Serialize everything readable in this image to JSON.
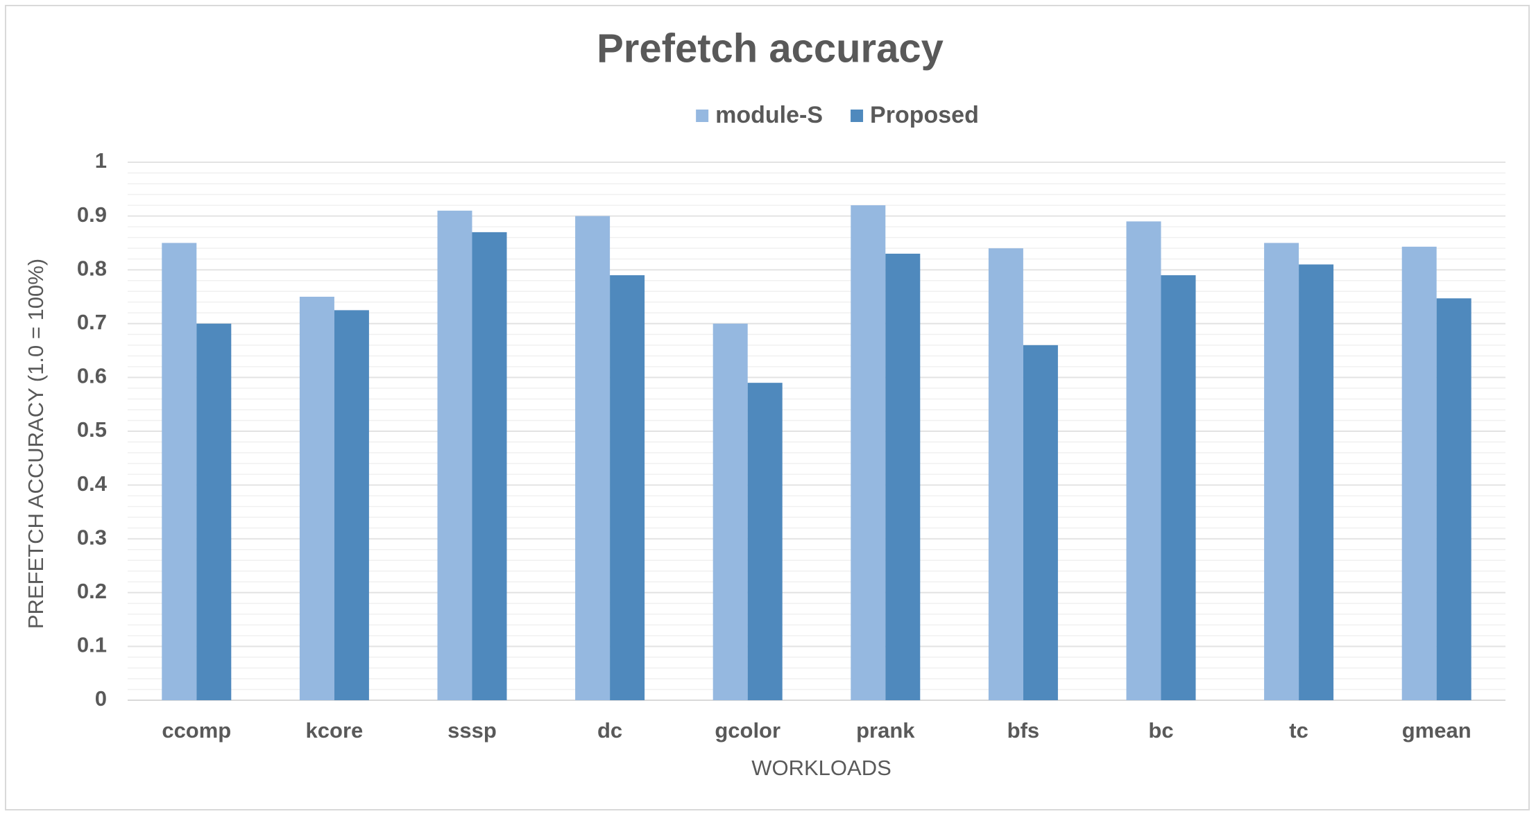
{
  "chart_data": {
    "type": "bar",
    "title": "Prefetch accuracy",
    "x_label": "WORKLOADS",
    "y_label": "PREFETCH ACCURACY (1.0 = 100%)",
    "categories": [
      "ccomp",
      "kcore",
      "sssp",
      "dc",
      "gcolor",
      "prank",
      "bfs",
      "bc",
      "tc",
      "gmean"
    ],
    "series": [
      {
        "name": "module-S",
        "color": "#95b8e0",
        "values": [
          0.85,
          0.75,
          0.91,
          0.9,
          0.7,
          0.92,
          0.84,
          0.89,
          0.85,
          0.843
        ]
      },
      {
        "name": "Proposed",
        "color": "#4f89bd",
        "values": [
          0.7,
          0.725,
          0.87,
          0.79,
          0.59,
          0.83,
          0.66,
          0.79,
          0.81,
          0.747
        ]
      }
    ],
    "ylim": [
      0,
      1
    ],
    "yticks": [
      0,
      0.1,
      0.2,
      0.3,
      0.4,
      0.5,
      0.6,
      0.7,
      0.8,
      0.9,
      1
    ],
    "grid": true,
    "minor_grid": true,
    "legend": "top"
  }
}
